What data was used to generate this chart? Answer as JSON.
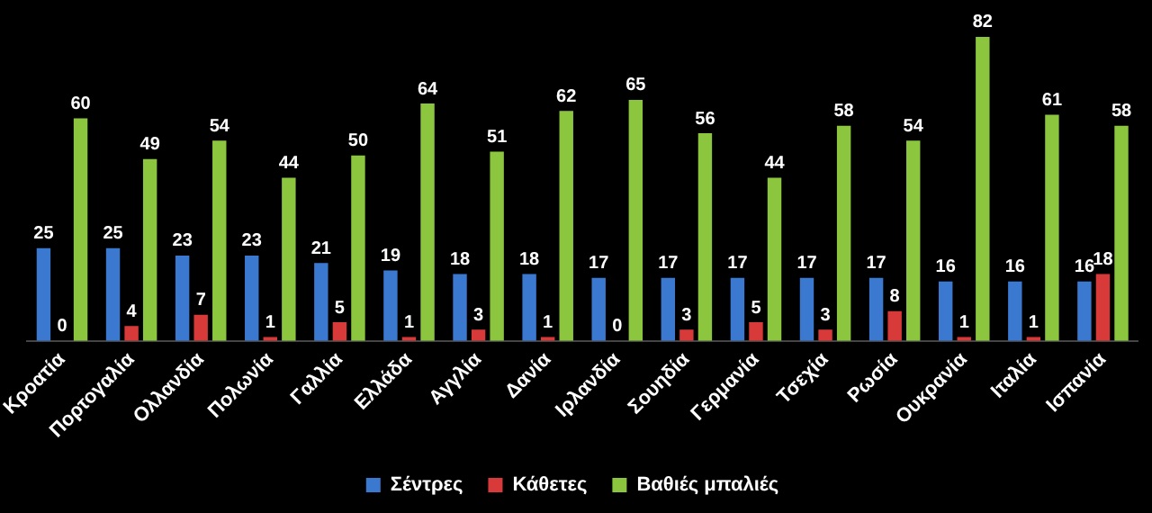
{
  "chart_data": {
    "type": "bar",
    "categories": [
      "Κροατία",
      "Πορτογαλία",
      "Ολλανδία",
      "Πολωνία",
      "Γαλλία",
      "Ελλάδα",
      "Αγγλία",
      "Δανία",
      "Ιρλανδία",
      "Σουηδία",
      "Γερμανία",
      "Τσεχία",
      "Ρωσία",
      "Ουκρανία",
      "Ιταλία",
      "Ισπανία"
    ],
    "series": [
      {
        "name": "Σέντρες",
        "color": "#3b78d0",
        "values": [
          25,
          25,
          23,
          23,
          21,
          19,
          18,
          18,
          17,
          17,
          17,
          17,
          17,
          16,
          16,
          16
        ]
      },
      {
        "name": "Κάθετες",
        "color": "#d83a3a",
        "values": [
          0,
          4,
          7,
          1,
          5,
          1,
          3,
          1,
          0,
          3,
          5,
          3,
          8,
          1,
          1,
          18
        ]
      },
      {
        "name": "Βαθιές μπαλιές",
        "color": "#8cc63f",
        "values": [
          60,
          49,
          54,
          44,
          50,
          64,
          51,
          62,
          65,
          56,
          44,
          58,
          54,
          82,
          61,
          58
        ]
      }
    ],
    "data_labels": true,
    "legend": "bottom"
  }
}
